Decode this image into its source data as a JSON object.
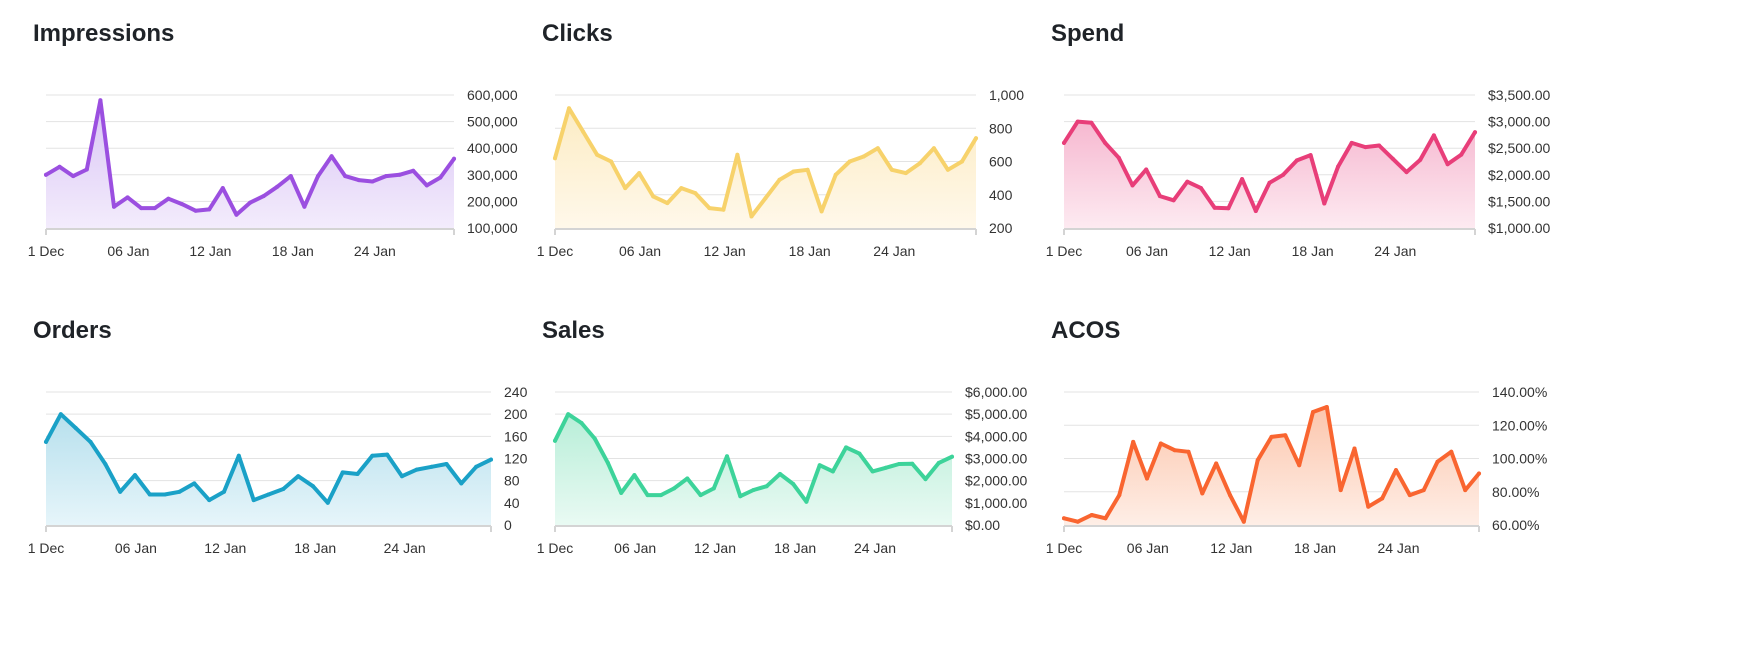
{
  "chart_data": [
    {
      "type": "area",
      "title": "Impressions",
      "color": "#9b4fe0",
      "fill_top": "#d9c4f5",
      "fill_bottom": "#f3ecfc",
      "x_ticks": [
        "1 Dec",
        "06 Jan",
        "12 Jan",
        "18 Jan",
        "24 Jan"
      ],
      "y_ticks": [
        "100,000",
        "200,000",
        "300,000",
        "400,000",
        "500,000",
        "600,000"
      ],
      "ylim": [
        100000,
        600000
      ],
      "values": [
        300000,
        330000,
        295000,
        320000,
        580000,
        180000,
        215000,
        175000,
        175000,
        210000,
        190000,
        165000,
        170000,
        250000,
        150000,
        195000,
        220000,
        255000,
        295000,
        180000,
        295000,
        370000,
        295000,
        280000,
        275000,
        295000,
        300000,
        315000,
        260000,
        290000,
        360000
      ]
    },
    {
      "type": "area",
      "title": "Clicks",
      "color": "#f7d26b",
      "fill_top": "#fcecc4",
      "fill_bottom": "#fff8ea",
      "x_ticks": [
        "1 Dec",
        "06 Jan",
        "12 Jan",
        "18 Jan",
        "24 Jan"
      ],
      "y_ticks": [
        "200",
        "400",
        "600",
        "800",
        "1,000"
      ],
      "ylim": [
        200,
        1000
      ],
      "values": [
        620,
        920,
        780,
        640,
        600,
        440,
        530,
        390,
        350,
        440,
        410,
        320,
        310,
        640,
        270,
        380,
        490,
        540,
        550,
        300,
        520,
        600,
        630,
        680,
        550,
        530,
        590,
        680,
        550,
        600,
        740
      ]
    },
    {
      "type": "area",
      "title": "Spend",
      "color": "#e83e79",
      "fill_top": "#f6b8d0",
      "fill_bottom": "#fdeaf1",
      "x_ticks": [
        "1 Dec",
        "06 Jan",
        "12 Jan",
        "18 Jan",
        "24 Jan"
      ],
      "y_ticks": [
        "$1,000.00",
        "$1,500.00",
        "$2,000.00",
        "$2,500.00",
        "$3,000.00",
        "$3,500.00"
      ],
      "ylim": [
        1000,
        3500
      ],
      "values": [
        2600,
        3000,
        2980,
        2600,
        2320,
        1800,
        2100,
        1600,
        1520,
        1870,
        1750,
        1380,
        1370,
        1920,
        1320,
        1850,
        2000,
        2270,
        2370,
        1460,
        2150,
        2600,
        2520,
        2550,
        2300,
        2050,
        2280,
        2740,
        2200,
        2380,
        2800
      ]
    },
    {
      "type": "area",
      "title": "Orders",
      "color": "#1aa1c7",
      "fill_top": "#b7e0ed",
      "fill_bottom": "#e6f5fa",
      "x_ticks": [
        "1 Dec",
        "06 Jan",
        "12 Jan",
        "18 Jan",
        "24 Jan"
      ],
      "y_ticks": [
        "0",
        "40",
        "80",
        "120",
        "160",
        "200",
        "240"
      ],
      "ylim": [
        0,
        240
      ],
      "values": [
        150,
        200,
        175,
        150,
        110,
        60,
        90,
        55,
        55,
        60,
        75,
        45,
        60,
        125,
        45,
        55,
        65,
        88,
        70,
        40,
        95,
        92,
        125,
        127,
        88,
        100,
        105,
        110,
        75,
        105,
        118
      ]
    },
    {
      "type": "area",
      "title": "Sales",
      "color": "#3dd39a",
      "fill_top": "#b8eed8",
      "fill_bottom": "#e9faf3",
      "x_ticks": [
        "1 Dec",
        "06 Jan",
        "12 Jan",
        "18 Jan",
        "24 Jan"
      ],
      "y_ticks": [
        "$0.00",
        "$1,000.00",
        "$2,000.00",
        "$3,000.00",
        "$4,000.00",
        "$5,000.00",
        "$6,000.00"
      ],
      "ylim": [
        0,
        6000
      ],
      "values": [
        3800,
        5000,
        4600,
        3900,
        2800,
        1450,
        2250,
        1350,
        1350,
        1650,
        2100,
        1350,
        1650,
        3100,
        1300,
        1580,
        1750,
        2300,
        1850,
        1050,
        2700,
        2420,
        3500,
        3220,
        2420,
        2580,
        2750,
        2760,
        2070,
        2800,
        3080
      ]
    },
    {
      "type": "area",
      "title": "ACOS",
      "color": "#f96530",
      "fill_top": "#fcc6ad",
      "fill_bottom": "#feeee6",
      "x_ticks": [
        "1 Dec",
        "06 Jan",
        "12 Jan",
        "18 Jan",
        "24 Jan"
      ],
      "y_ticks": [
        "60.00%",
        "80.00%",
        "100.00%",
        "120.00%",
        "140.00%"
      ],
      "ylim": [
        60,
        140
      ],
      "values": [
        64,
        62,
        66,
        64,
        78,
        110,
        88,
        109,
        105,
        104,
        79,
        97,
        78,
        62,
        99,
        113,
        114,
        96,
        128,
        131,
        81,
        106,
        71,
        76,
        93,
        78,
        81,
        98,
        104,
        81,
        91
      ]
    }
  ]
}
